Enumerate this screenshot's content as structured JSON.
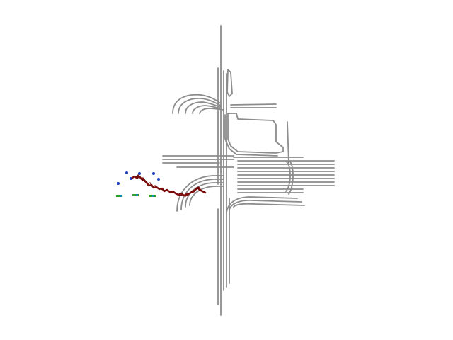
{
  "scene": {
    "type": "top-down lane map with trajectory",
    "colors": {
      "background": "#ffffff",
      "lane": "#8c8c8c",
      "trajectory": "#7a0a0a",
      "agent_blue": "#1f3fbf",
      "agent_green": "#2ca02c",
      "agent_cyan": "#1b8fb0"
    },
    "legend": null
  }
}
